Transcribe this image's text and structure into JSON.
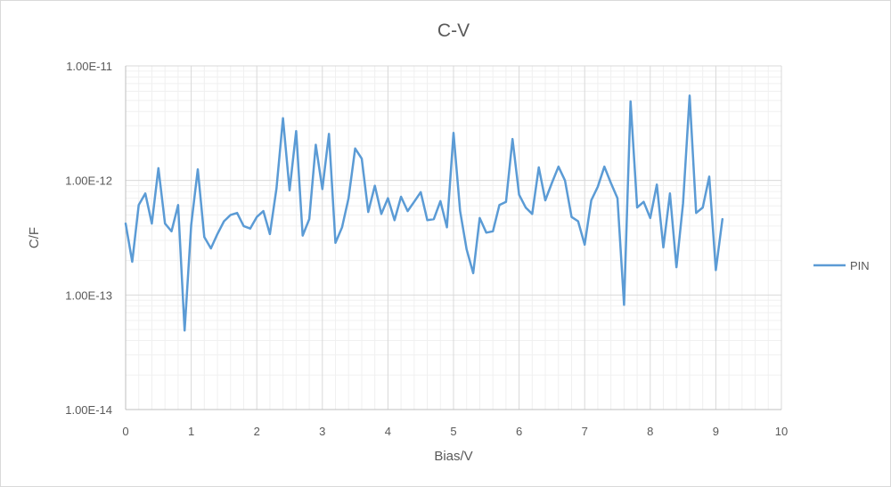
{
  "chart_data": {
    "type": "line",
    "title": "C-V",
    "xlabel": "Bias/V",
    "ylabel": "C/F",
    "xlim": [
      0,
      10
    ],
    "ylim": [
      1e-14,
      1e-11
    ],
    "yscale": "log",
    "x_ticks": [
      "0",
      "1",
      "2",
      "3",
      "4",
      "5",
      "6",
      "7",
      "8",
      "9",
      "10"
    ],
    "y_ticks": [
      "1.00E-14",
      "1.00E-13",
      "1.00E-12",
      "1.00E-11"
    ],
    "grid": true,
    "legend_position": "right",
    "series": [
      {
        "name": "PIN",
        "color": "#5B9BD5",
        "x": [
          0,
          0.1,
          0.2,
          0.3,
          0.4,
          0.5,
          0.6,
          0.7,
          0.8,
          0.9,
          1.0,
          1.1,
          1.2,
          1.3,
          1.4,
          1.5,
          1.6,
          1.7,
          1.8,
          1.9,
          2.0,
          2.1,
          2.2,
          2.3,
          2.4,
          2.5,
          2.6,
          2.7,
          2.8,
          2.9,
          3.0,
          3.1,
          3.2,
          3.3,
          3.4,
          3.5,
          3.6,
          3.7,
          3.8,
          3.9,
          4.0,
          4.1,
          4.2,
          4.3,
          4.4,
          4.5,
          4.6,
          4.7,
          4.8,
          4.9,
          5.0,
          5.1,
          5.2,
          5.3,
          5.4,
          5.5,
          5.6,
          5.7,
          5.8,
          5.9,
          6.0,
          6.1,
          6.2,
          6.3,
          6.4,
          6.5,
          6.6,
          6.7,
          6.8,
          6.9,
          7.0,
          7.1,
          7.2,
          7.3,
          7.4,
          7.5,
          7.6,
          7.7,
          7.8,
          7.9,
          8.0,
          8.1,
          8.2,
          8.3,
          8.4,
          8.5,
          8.6,
          8.7,
          8.8,
          8.9,
          9.0,
          9.1
        ],
        "values": [
          4.2e-13,
          1.95e-13,
          6.1e-13,
          7.7e-13,
          4.2e-13,
          1.28e-12,
          4.2e-13,
          3.6e-13,
          6.1e-13,
          4.9e-14,
          4.1e-13,
          1.25e-12,
          3.2e-13,
          2.55e-13,
          3.4e-13,
          4.4e-13,
          5e-13,
          5.2e-13,
          4e-13,
          3.8e-13,
          4.8e-13,
          5.4e-13,
          3.4e-13,
          8.5e-13,
          3.5e-12,
          8.2e-13,
          2.7e-12,
          3.3e-13,
          4.6e-13,
          2.05e-12,
          8.4e-13,
          2.55e-12,
          2.85e-13,
          3.9e-13,
          7e-13,
          1.9e-12,
          1.55e-12,
          5.3e-13,
          9e-13,
          5.1e-13,
          7e-13,
          4.5e-13,
          7.2e-13,
          5.4e-13,
          6.5e-13,
          7.9e-13,
          4.5e-13,
          4.6e-13,
          6.6e-13,
          3.9e-13,
          2.6e-12,
          5.4e-13,
          2.5e-13,
          1.55e-13,
          4.7e-13,
          3.5e-13,
          3.6e-13,
          6.1e-13,
          6.5e-13,
          2.3e-12,
          7.5e-13,
          5.8e-13,
          5.1e-13,
          1.3e-12,
          6.7e-13,
          9.5e-13,
          1.32e-12,
          1e-12,
          4.8e-13,
          4.4e-13,
          2.75e-13,
          6.7e-13,
          8.8e-13,
          1.32e-12,
          9.5e-13,
          7e-13,
          8.2e-14,
          4.9e-12,
          5.8e-13,
          6.5e-13,
          4.7e-13,
          9.2e-13,
          2.6e-13,
          7.7e-13,
          1.75e-13,
          6.3e-13,
          5.5e-12,
          5.2e-13,
          5.8e-13,
          1.08e-12,
          1.65e-13,
          4.6e-13
        ]
      }
    ]
  }
}
